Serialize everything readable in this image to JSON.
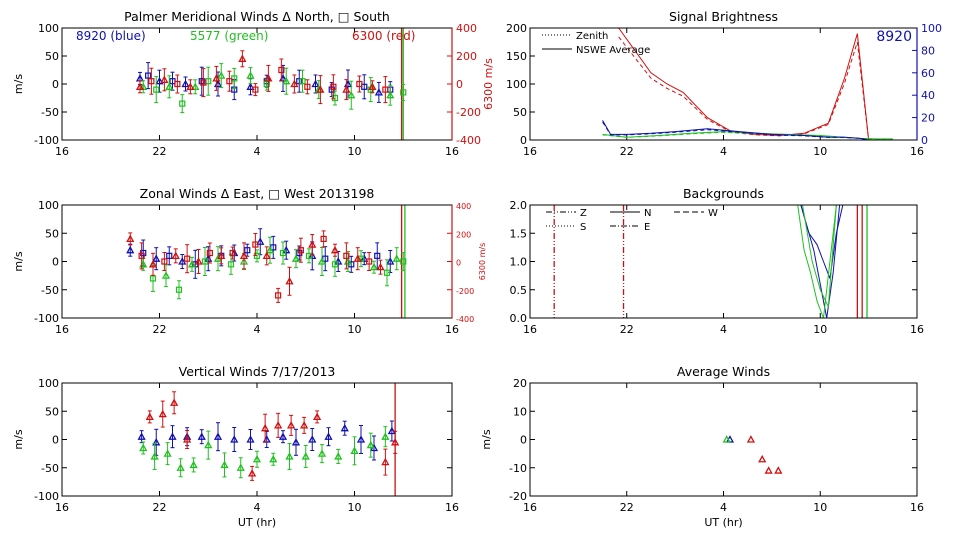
{
  "colors": {
    "blue": "#1010b0",
    "green": "#20c020",
    "red": "#d01010",
    "axis": "#000000"
  },
  "chart_data": [
    {
      "id": "meridional",
      "type": "scatter",
      "title": "Palmer Meridional Winds Δ North, □ South",
      "ylabel": "m/s",
      "y2label": "6300 m/s",
      "xlim": [
        16,
        40
      ],
      "xticks": [
        16,
        22,
        28,
        34,
        40
      ],
      "xticklabels": [
        "16",
        "22",
        "4",
        "10",
        "16"
      ],
      "ylim": [
        -100,
        100
      ],
      "yticks": [
        -100,
        -50,
        0,
        50,
        100
      ],
      "yticklabels": [
        "-100",
        "-50",
        "0",
        "50",
        "100"
      ],
      "y2lim": [
        -400,
        400
      ],
      "y2ticks": [
        -400,
        -200,
        0,
        200,
        400
      ],
      "y2ticklabels": [
        "-400",
        "-200",
        "0",
        "200",
        "400"
      ],
      "legend_texts": [
        {
          "text": "8920 (blue)",
          "color": "blue"
        },
        {
          "text": "5577 (green)",
          "color": "green"
        },
        {
          "text": "6300 (red)",
          "color": "red"
        }
      ],
      "vlines": [
        {
          "x": 36.9,
          "color": "red"
        },
        {
          "x": 37.0,
          "color": "green"
        }
      ],
      "series": [
        {
          "name": "8920",
          "color": "blue",
          "x": [
            20.8,
            21.3,
            22.0,
            22.8,
            23.6,
            24.6,
            25.6,
            26.6,
            27.6,
            28.6,
            29.6,
            30.6,
            31.6,
            32.6,
            33.6,
            34.6,
            35.5,
            36.2
          ],
          "y": [
            10,
            15,
            5,
            5,
            0,
            5,
            0,
            -10,
            -5,
            5,
            10,
            5,
            0,
            -10,
            0,
            -5,
            -15,
            -10
          ]
        },
        {
          "name": "5577",
          "color": "green",
          "x": [
            21.0,
            21.8,
            22.6,
            23.4,
            24.2,
            25.0,
            25.8,
            26.6,
            27.6,
            28.6,
            29.8,
            30.8,
            31.8,
            32.8,
            33.8,
            35.0,
            36.2,
            37.0
          ],
          "y": [
            -5,
            -10,
            -5,
            -35,
            -5,
            5,
            15,
            10,
            15,
            0,
            5,
            5,
            -10,
            -25,
            -20,
            -10,
            -20,
            -15
          ]
        },
        {
          "name": "6300",
          "color": "red",
          "x": [
            20.8,
            21.5,
            22.3,
            23.1,
            23.9,
            24.7,
            25.5,
            26.3,
            27.1,
            27.9,
            28.7,
            29.5,
            30.3,
            31.1,
            31.9,
            32.7,
            33.5,
            34.3,
            35.1,
            35.9
          ],
          "y": [
            -20,
            20,
            30,
            0,
            -20,
            10,
            40,
            20,
            180,
            -40,
            40,
            100,
            0,
            -20,
            -40,
            -20,
            -40,
            0,
            -20,
            -40
          ]
        }
      ]
    },
    {
      "id": "brightness",
      "type": "line",
      "title": "Signal Brightness",
      "xlim": [
        16,
        40
      ],
      "xticks": [
        16,
        22,
        28,
        34,
        40
      ],
      "xticklabels": [
        "16",
        "22",
        "4",
        "10",
        "16"
      ],
      "ylim": [
        0,
        200
      ],
      "yticks": [
        0,
        50,
        100,
        150,
        200
      ],
      "yticklabels": [
        "0",
        "50",
        "100",
        "150",
        "200"
      ],
      "y2lim": [
        0,
        100
      ],
      "y2ticks": [
        0,
        20,
        40,
        60,
        80,
        100
      ],
      "y2ticklabels": [
        "0",
        "20",
        "40",
        "60",
        "80",
        "100"
      ],
      "legend": [
        {
          "label": "Zenith",
          "dash": "dotted"
        },
        {
          "label": "NSWE Average",
          "dash": "solid"
        }
      ],
      "annotation": "8920",
      "series": [
        {
          "name": "6300",
          "color": "red",
          "x": [
            21.5,
            22.5,
            23.5,
            24.5,
            25.5,
            27.0,
            28.5,
            30.0,
            31.5,
            33.0,
            34.5,
            35.5,
            36.3,
            37.0,
            38.0
          ],
          "y": [
            200,
            160,
            120,
            100,
            85,
            40,
            15,
            10,
            8,
            12,
            30,
            110,
            190,
            0,
            0
          ]
        },
        {
          "name": "5577",
          "color": "green",
          "x": [
            20.5,
            22.0,
            24.0,
            26.0,
            28.0,
            30.0,
            32.0,
            34.0,
            35.5,
            36.5,
            37.5,
            38.5
          ],
          "y": [
            10,
            5,
            8,
            12,
            15,
            12,
            10,
            8,
            5,
            3,
            2,
            2
          ]
        },
        {
          "name": "8920",
          "color": "blue",
          "x": [
            20.5,
            21.0,
            22.0,
            23.5,
            25.0,
            27.0,
            29.0,
            31.0,
            33.0,
            34.5,
            35.5,
            36.5,
            37.0
          ],
          "y": [
            35,
            10,
            10,
            12,
            15,
            20,
            15,
            10,
            8,
            5,
            5,
            3,
            0
          ]
        }
      ]
    },
    {
      "id": "zonal",
      "type": "scatter",
      "title": "Zonal Winds Δ East, □ West 2013198",
      "ylabel": "m/s",
      "y2label": "6300 m/s",
      "xlim": [
        16,
        40
      ],
      "xticks": [
        16,
        22,
        28,
        34,
        40
      ],
      "xticklabels": [
        "16",
        "22",
        "4",
        "10",
        "16"
      ],
      "ylim": [
        -100,
        100
      ],
      "yticks": [
        -100,
        -50,
        0,
        50,
        100
      ],
      "yticklabels": [
        "-100",
        "-50",
        "0",
        "50",
        "100"
      ],
      "y2lim": [
        -400,
        400
      ],
      "y2ticks": [
        -400,
        -200,
        0,
        200,
        400
      ],
      "y2ticklabels": [
        "-400",
        "-200",
        "0",
        "200",
        "400"
      ],
      "vlines": [
        {
          "x": 36.9,
          "color": "red"
        },
        {
          "x": 37.1,
          "color": "green"
        }
      ],
      "series": [
        {
          "name": "8920",
          "color": "blue",
          "x": [
            20.2,
            21.0,
            21.8,
            22.6,
            23.4,
            24.2,
            25.0,
            25.8,
            26.6,
            27.4,
            28.2,
            29.0,
            29.8,
            30.6,
            31.4,
            32.2,
            33.0,
            33.8,
            34.6,
            35.4,
            36.2
          ],
          "y": [
            20,
            15,
            5,
            10,
            0,
            -5,
            5,
            10,
            15,
            20,
            35,
            25,
            20,
            15,
            10,
            5,
            0,
            -5,
            5,
            10,
            0
          ]
        },
        {
          "name": "5577",
          "color": "green",
          "x": [
            21.0,
            21.6,
            22.4,
            23.2,
            24.0,
            24.8,
            25.6,
            26.4,
            27.2,
            28.0,
            28.8,
            29.6,
            30.4,
            31.2,
            32.0,
            32.8,
            33.6,
            34.4,
            35.2,
            36.0,
            36.6,
            37.0
          ],
          "y": [
            -5,
            -30,
            -25,
            -50,
            -5,
            0,
            5,
            -5,
            0,
            10,
            20,
            15,
            5,
            10,
            0,
            -5,
            0,
            5,
            -10,
            -20,
            5,
            0
          ]
        },
        {
          "name": "6300",
          "color": "red",
          "x": [
            20.2,
            20.9,
            21.6,
            22.3,
            23.0,
            23.7,
            24.4,
            25.1,
            25.8,
            26.5,
            27.2,
            27.9,
            28.6,
            29.3,
            30.0,
            30.7,
            31.4,
            32.1,
            32.8,
            33.5,
            34.2,
            34.9,
            35.6
          ],
          "y": [
            160,
            40,
            -20,
            0,
            40,
            20,
            0,
            60,
            40,
            60,
            40,
            120,
            40,
            -240,
            -140,
            80,
            120,
            160,
            80,
            40,
            20,
            0,
            -40
          ]
        }
      ]
    },
    {
      "id": "backgrounds",
      "type": "line",
      "title": "Backgrounds",
      "xlim": [
        16,
        40
      ],
      "xticks": [
        16,
        22,
        28,
        34,
        40
      ],
      "xticklabels": [
        "16",
        "22",
        "4",
        "10",
        "16"
      ],
      "ylim": [
        0,
        2
      ],
      "yticks": [
        0,
        0.5,
        1,
        1.5,
        2
      ],
      "yticklabels": [
        "0.0",
        "0.5",
        "1.0",
        "1.5",
        "2.0"
      ],
      "legend": [
        {
          "label": "Z",
          "dash": "dashdotdot"
        },
        {
          "label": "N",
          "dash": "solid"
        },
        {
          "label": "W",
          "dash": "dashed"
        },
        {
          "label": "S",
          "dash": "dotted"
        },
        {
          "label": "E",
          "dash": "dashdot"
        }
      ],
      "vlines": [
        {
          "x": 17.5,
          "color": "red"
        },
        {
          "x": 21.8,
          "color": "red"
        },
        {
          "x": 36.3,
          "color": "red"
        },
        {
          "x": 36.6,
          "color": "red"
        },
        {
          "x": 36.9,
          "color": "green"
        }
      ],
      "series": [
        {
          "name": "8920 N",
          "color": "blue",
          "x": [
            32.8,
            33.2,
            33.6,
            34.0,
            34.4,
            34.8,
            35.2
          ],
          "y": [
            2.0,
            1.6,
            1.2,
            0.6,
            0.0,
            0.8,
            2.0
          ]
        },
        {
          "name": "8920 W",
          "color": "blue",
          "x": [
            32.8,
            33.3,
            33.8,
            34.2,
            34.6,
            35.0,
            35.4
          ],
          "y": [
            2.0,
            1.5,
            1.3,
            1.0,
            0.7,
            1.5,
            2.0
          ]
        },
        {
          "name": "5577 N",
          "color": "green",
          "x": [
            32.6,
            33.0,
            33.4,
            33.8,
            34.2,
            34.6,
            35.0
          ],
          "y": [
            2.0,
            1.2,
            0.8,
            0.3,
            0.0,
            1.0,
            2.0
          ]
        },
        {
          "name": "5577 W",
          "color": "green",
          "x": [
            32.9,
            33.5,
            34.0,
            34.5,
            35.0
          ],
          "y": [
            2.0,
            1.0,
            0.5,
            0.2,
            2.0
          ]
        }
      ]
    },
    {
      "id": "vertical",
      "type": "scatter",
      "title": "Vertical Winds 7/17/2013",
      "ylabel": "m/s",
      "xlabel": "UT (hr)",
      "xlim": [
        16,
        40
      ],
      "xticks": [
        16,
        22,
        28,
        34,
        40
      ],
      "xticklabels": [
        "16",
        "22",
        "4",
        "10",
        "16"
      ],
      "ylim": [
        -100,
        100
      ],
      "yticks": [
        -100,
        -50,
        0,
        50,
        100
      ],
      "yticklabels": [
        "-100",
        "-50",
        "0",
        "50",
        "100"
      ],
      "vlines": [
        {
          "x": 36.5,
          "color": "red"
        }
      ],
      "series": [
        {
          "name": "8920",
          "color": "blue",
          "x": [
            20.9,
            21.8,
            22.8,
            23.7,
            24.6,
            25.6,
            26.6,
            27.6,
            28.6,
            29.6,
            30.4,
            31.4,
            32.4,
            33.4,
            34.4,
            35.2,
            36.3
          ],
          "y": [
            5,
            -5,
            5,
            5,
            5,
            5,
            0,
            0,
            0,
            5,
            -5,
            0,
            5,
            20,
            0,
            -15,
            15
          ]
        },
        {
          "name": "5577",
          "color": "green",
          "x": [
            21.0,
            21.7,
            22.5,
            23.3,
            24.1,
            25.0,
            26.0,
            27.0,
            28.0,
            29.0,
            30.0,
            31.0,
            32.0,
            33.0,
            34.0,
            35.0,
            35.9
          ],
          "y": [
            -15,
            -30,
            -25,
            -50,
            -45,
            -10,
            -45,
            -50,
            -35,
            -35,
            -30,
            -30,
            -25,
            -30,
            -20,
            -10,
            5
          ]
        },
        {
          "name": "6300",
          "color": "red",
          "x": [
            21.4,
            22.2,
            22.9,
            23.7,
            27.7,
            28.5,
            29.3,
            30.1,
            30.9,
            31.7,
            35.9,
            36.5
          ],
          "y": [
            40,
            45,
            65,
            0,
            -60,
            20,
            25,
            25,
            25,
            40,
            -40,
            -5
          ]
        }
      ]
    },
    {
      "id": "average",
      "type": "scatter",
      "title": "Average Winds",
      "ylabel": "m/s",
      "xlabel": "UT (hr)",
      "xlim": [
        16,
        40
      ],
      "xticks": [
        16,
        22,
        28,
        34,
        40
      ],
      "xticklabels": [
        "16",
        "22",
        "4",
        "10",
        "16"
      ],
      "ylim": [
        -20,
        20
      ],
      "yticks": [
        -20,
        -10,
        0,
        10,
        20
      ],
      "yticklabels": [
        "-20",
        "-10",
        "0",
        "10",
        "20"
      ],
      "series": [
        {
          "name": "8920",
          "color": "blue",
          "x": [
            28.4
          ],
          "y": [
            0
          ]
        },
        {
          "name": "5577",
          "color": "green",
          "x": [
            28.2
          ],
          "y": [
            0
          ]
        },
        {
          "name": "6300",
          "color": "red",
          "x": [
            29.7,
            30.4,
            30.8,
            31.4
          ],
          "y": [
            0,
            -7,
            -11,
            -11
          ]
        }
      ]
    }
  ]
}
